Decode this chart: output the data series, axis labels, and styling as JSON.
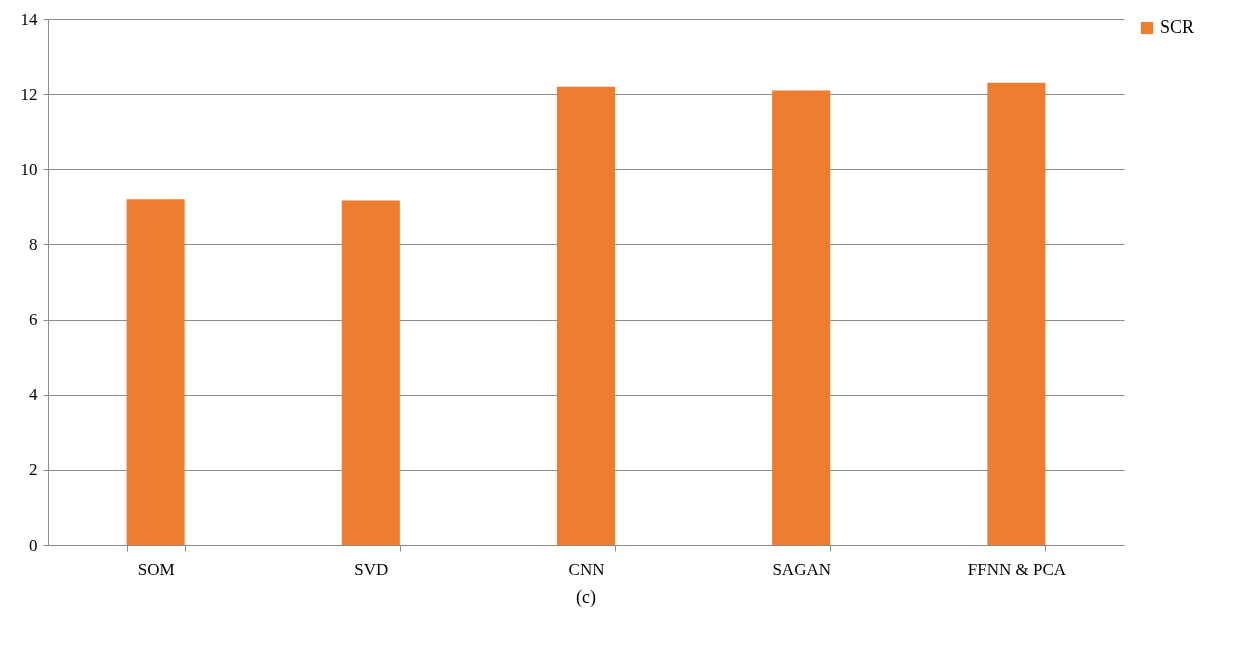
{
  "chart_data": {
    "type": "bar",
    "categories": [
      "SOM",
      "SVD",
      "CNN",
      "SAGAN",
      "FFNN & PCA"
    ],
    "series": [
      {
        "name": "SCR",
        "color": "#ed7d31",
        "values": [
          9.2,
          9.17,
          12.2,
          12.1,
          12.3
        ]
      }
    ],
    "ylim": [
      0,
      14
    ],
    "yticks": [
      0,
      2,
      4,
      6,
      8,
      10,
      12,
      14
    ],
    "grid": "y",
    "legend": "right",
    "annotations": [
      "(c)"
    ]
  }
}
